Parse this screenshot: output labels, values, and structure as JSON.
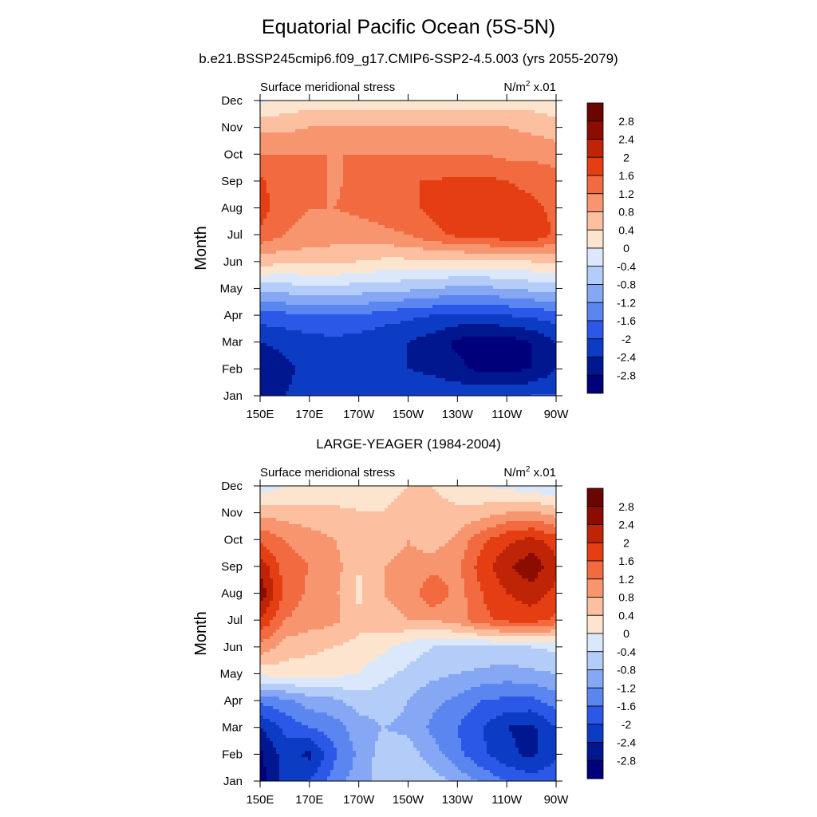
{
  "title": "Equatorial Pacific Ocean (5S-5N)",
  "subtitle": "b.e21.BSSP245cmip6.f09_g17.CMIP6-SSP2-4.5.003 (yrs 2055-2079)",
  "chart_data": [
    {
      "type": "heatmap",
      "title": "",
      "left_label": "Surface meridional stress",
      "units_label": "N/m",
      "units_sup": "2",
      "units_suffix": " x.01",
      "xlabel": "",
      "ylabel": "Month",
      "x_ticks": [
        "150E",
        "170E",
        "170W",
        "150W",
        "130W",
        "110W",
        "90W"
      ],
      "y_ticks": [
        "Jan",
        "Feb",
        "Mar",
        "Apr",
        "May",
        "Jun",
        "Jul",
        "Aug",
        "Sep",
        "Oct",
        "Nov",
        "Dec"
      ],
      "x": [
        150,
        160,
        170,
        180,
        190,
        200,
        210,
        220,
        230,
        240,
        250,
        260,
        270
      ],
      "values": [
        [
          -2.6,
          -2.4,
          -2.2,
          -2.1,
          -2.1,
          -2.1,
          -2.1,
          -2.1,
          -2.1,
          -2.1,
          -2.1,
          -2.0,
          -2.0
        ],
        [
          -2.7,
          -2.5,
          -2.3,
          -2.1,
          -2.2,
          -2.3,
          -2.4,
          -2.5,
          -2.7,
          -2.9,
          -2.9,
          -2.8,
          -2.4
        ],
        [
          -2.4,
          -2.3,
          -2.2,
          -2.1,
          -2.2,
          -2.3,
          -2.4,
          -2.6,
          -2.9,
          -3.0,
          -3.0,
          -2.8,
          -2.4
        ],
        [
          -1.8,
          -1.7,
          -1.6,
          -1.6,
          -1.6,
          -1.8,
          -1.9,
          -2.0,
          -2.1,
          -2.1,
          -2.0,
          -1.9,
          -1.8
        ],
        [
          -0.6,
          -0.6,
          -0.5,
          -0.5,
          -0.6,
          -0.6,
          -0.7,
          -0.8,
          -0.9,
          -0.9,
          -0.8,
          -0.7,
          -0.6
        ],
        [
          0.6,
          0.5,
          0.5,
          0.5,
          0.4,
          0.3,
          0.3,
          0.3,
          0.3,
          0.3,
          0.3,
          0.4,
          0.5
        ],
        [
          1.5,
          1.2,
          1.1,
          1.0,
          1.0,
          1.1,
          1.2,
          1.5,
          1.7,
          1.8,
          1.9,
          2.0,
          1.5
        ],
        [
          1.8,
          1.3,
          1.2,
          1.2,
          1.3,
          1.4,
          1.5,
          1.7,
          1.8,
          1.8,
          1.8,
          1.7,
          1.5
        ],
        [
          1.7,
          1.3,
          1.4,
          1.1,
          1.4,
          1.5,
          1.6,
          1.6,
          1.7,
          1.7,
          1.6,
          1.5,
          1.4
        ],
        [
          1.2,
          1.2,
          1.2,
          1.2,
          1.2,
          1.2,
          1.2,
          1.2,
          1.2,
          1.2,
          1.1,
          1.1,
          1.0
        ],
        [
          0.7,
          0.7,
          0.8,
          0.8,
          0.8,
          0.8,
          0.8,
          0.8,
          0.8,
          0.8,
          0.8,
          0.7,
          0.6
        ],
        [
          -0.1,
          0.1,
          0.2,
          0.2,
          0.2,
          0.2,
          0.2,
          0.2,
          0.2,
          0.2,
          0.2,
          0.2,
          0.1
        ]
      ],
      "levels": [
        -2.8,
        -2.4,
        -2,
        -1.6,
        -1.2,
        -0.8,
        -0.4,
        0,
        0.4,
        0.8,
        1.2,
        1.6,
        2,
        2.4,
        2.8
      ],
      "colorbar_labels": [
        "2.8",
        "2.4",
        "2",
        "1.6",
        "1.2",
        "0.8",
        "0.4",
        "0",
        "-0.4",
        "-0.8",
        "-1.2",
        "-1.6",
        "-2",
        "-2.4",
        "-2.8"
      ]
    },
    {
      "type": "heatmap",
      "title": "LARGE-YEAGER (1984-2004)",
      "left_label": "Surface meridional stress",
      "units_label": "N/m",
      "units_sup": "2",
      "units_suffix": " x.01",
      "xlabel": "",
      "ylabel": "Month",
      "x_ticks": [
        "150E",
        "170E",
        "170W",
        "150W",
        "130W",
        "110W",
        "90W"
      ],
      "y_ticks": [
        "Jan",
        "Feb",
        "Mar",
        "Apr",
        "May",
        "Jun",
        "Jul",
        "Aug",
        "Sep",
        "Oct",
        "Nov",
        "Dec"
      ],
      "x": [
        150,
        160,
        170,
        180,
        190,
        200,
        210,
        220,
        230,
        240,
        250,
        260,
        270
      ],
      "values": [
        [
          -3.0,
          -2.2,
          -2.0,
          -1.4,
          -1.0,
          -0.6,
          -0.5,
          -0.6,
          -0.9,
          -1.3,
          -1.6,
          -1.8,
          -1.7
        ],
        [
          -2.9,
          -2.2,
          -2.5,
          -1.7,
          -1.1,
          -0.6,
          -0.6,
          -1.0,
          -1.5,
          -1.9,
          -2.3,
          -2.5,
          -2.1
        ],
        [
          -2.4,
          -1.9,
          -1.6,
          -1.4,
          -1.0,
          -0.8,
          -0.9,
          -1.3,
          -1.6,
          -2.0,
          -2.4,
          -2.5,
          -2.0
        ],
        [
          -1.5,
          -1.3,
          -1.0,
          -0.9,
          -0.6,
          -0.6,
          -0.8,
          -1.1,
          -1.3,
          -1.6,
          -1.7,
          -1.7,
          -1.4
        ],
        [
          0.1,
          0.2,
          0.2,
          0.1,
          0.0,
          -0.3,
          -0.5,
          -0.7,
          -0.8,
          -0.9,
          -1.0,
          -0.9,
          -0.8
        ],
        [
          1.1,
          0.6,
          0.5,
          0.4,
          0.3,
          0.1,
          -0.2,
          -0.4,
          -0.4,
          -0.5,
          -0.4,
          -0.4,
          -0.3
        ],
        [
          2.0,
          1.2,
          1.0,
          0.9,
          0.5,
          0.7,
          0.8,
          0.8,
          1.0,
          1.5,
          1.7,
          1.8,
          1.5
        ],
        [
          2.7,
          1.5,
          1.1,
          0.9,
          0.3,
          0.8,
          0.9,
          1.6,
          1.0,
          1.6,
          2.0,
          2.2,
          1.9
        ],
        [
          2.3,
          1.4,
          1.2,
          1.0,
          0.4,
          0.8,
          0.9,
          1.0,
          1.1,
          1.8,
          2.3,
          2.7,
          2.1
        ],
        [
          1.5,
          1.2,
          1.0,
          0.8,
          0.5,
          0.6,
          0.8,
          0.6,
          0.9,
          1.5,
          1.9,
          2.1,
          1.8
        ],
        [
          0.7,
          0.6,
          0.5,
          0.5,
          0.4,
          0.4,
          0.5,
          0.5,
          0.5,
          0.6,
          0.8,
          0.9,
          0.6
        ],
        [
          -0.3,
          0.0,
          0.1,
          0.1,
          0.3,
          0.3,
          0.4,
          0.4,
          0.2,
          0.0,
          -0.1,
          -0.3,
          -0.4
        ]
      ],
      "levels": [
        -2.8,
        -2.4,
        -2,
        -1.6,
        -1.2,
        -0.8,
        -0.4,
        0,
        0.4,
        0.8,
        1.2,
        1.6,
        2,
        2.4,
        2.8
      ],
      "colorbar_labels": [
        "2.8",
        "2.4",
        "2",
        "1.6",
        "1.2",
        "0.8",
        "0.4",
        "0",
        "-0.4",
        "-0.8",
        "-1.2",
        "-1.6",
        "-2",
        "-2.4",
        "-2.8"
      ]
    }
  ],
  "colors": {
    "palette": [
      "#00007a",
      "#00178f",
      "#0c3cc4",
      "#2b58e6",
      "#5b86f0",
      "#86a8f4",
      "#b4ccf8",
      "#dbe8fb",
      "#fce4cf",
      "#fcc0a1",
      "#f7956e",
      "#f26a3f",
      "#e53e13",
      "#bf2406",
      "#8c0d00",
      "#6a0500"
    ]
  }
}
